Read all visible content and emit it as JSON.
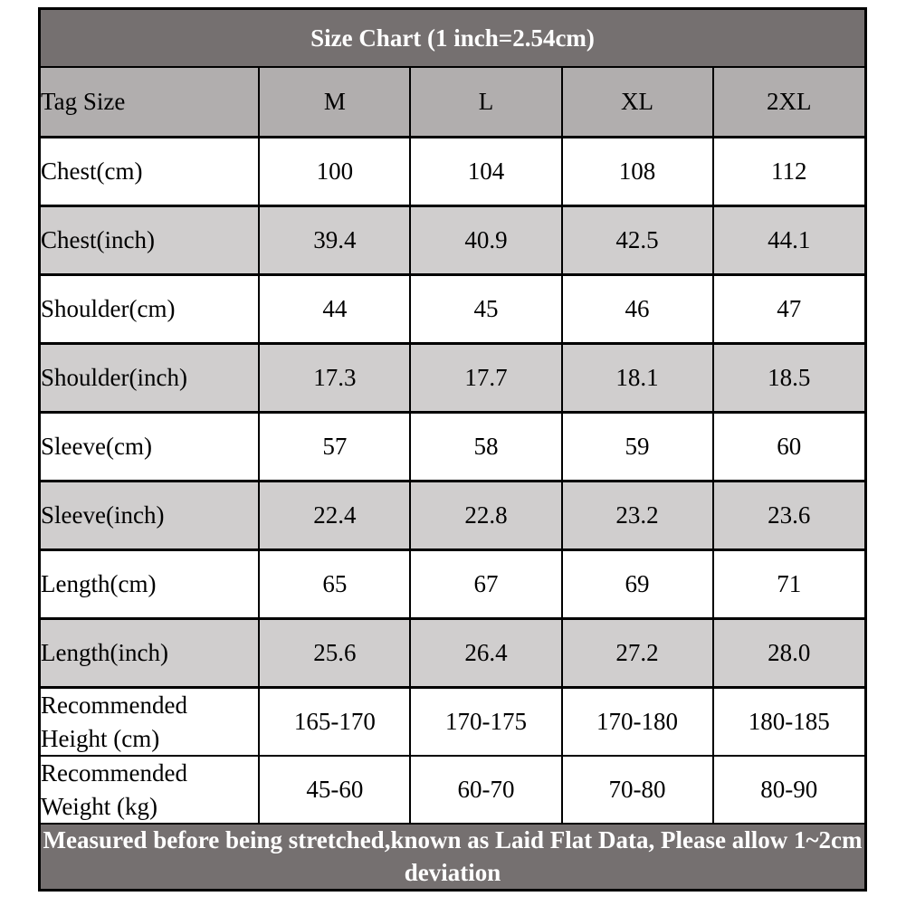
{
  "chart_data": {
    "type": "table",
    "title": "Size Chart (1 inch=2.54cm)",
    "columns": [
      "Tag Size",
      "M",
      "L",
      "XL",
      "2XL"
    ],
    "rows": [
      {
        "label": "Chest(cm)",
        "values": [
          "100",
          "104",
          "108",
          "112"
        ],
        "shaded": false
      },
      {
        "label": "Chest(inch)",
        "values": [
          "39.4",
          "40.9",
          "42.5",
          "44.1"
        ],
        "shaded": true
      },
      {
        "label": "Shoulder(cm)",
        "values": [
          "44",
          "45",
          "46",
          "47"
        ],
        "shaded": false
      },
      {
        "label": "Shoulder(inch)",
        "values": [
          "17.3",
          "17.7",
          "18.1",
          "18.5"
        ],
        "shaded": true
      },
      {
        "label": "Sleeve(cm)",
        "values": [
          "57",
          "58",
          "59",
          "60"
        ],
        "shaded": false
      },
      {
        "label": "Sleeve(inch)",
        "values": [
          "22.4",
          "22.8",
          "23.2",
          "23.6"
        ],
        "shaded": true
      },
      {
        "label": "Length(cm)",
        "values": [
          "65",
          "67",
          "69",
          "71"
        ],
        "shaded": false
      },
      {
        "label": "Length(inch)",
        "values": [
          "25.6",
          "26.4",
          "27.2",
          "28.0"
        ],
        "shaded": true
      },
      {
        "label": "Recommended Height (cm)",
        "values": [
          "165-170",
          "170-175",
          "170-180",
          "180-185"
        ],
        "shaded": false
      },
      {
        "label": "Recommended Weight (kg)",
        "values": [
          "45-60",
          "60-70",
          "70-80",
          "80-90"
        ],
        "shaded": false
      }
    ],
    "footer": "Measured before being stretched,known as Laid Flat Data, Please allow 1~2cm deviation",
    "layout": {
      "grid": true,
      "first_column_align": "left",
      "value_align": "center"
    }
  },
  "colors": {
    "title_bar_bg": "#757070",
    "header_row_bg": "#b1aeae",
    "shaded_row_bg": "#d0cece",
    "row_bg": "#ffffff",
    "border": "#000000",
    "title_text": "#ffffff",
    "body_text": "#000000"
  }
}
